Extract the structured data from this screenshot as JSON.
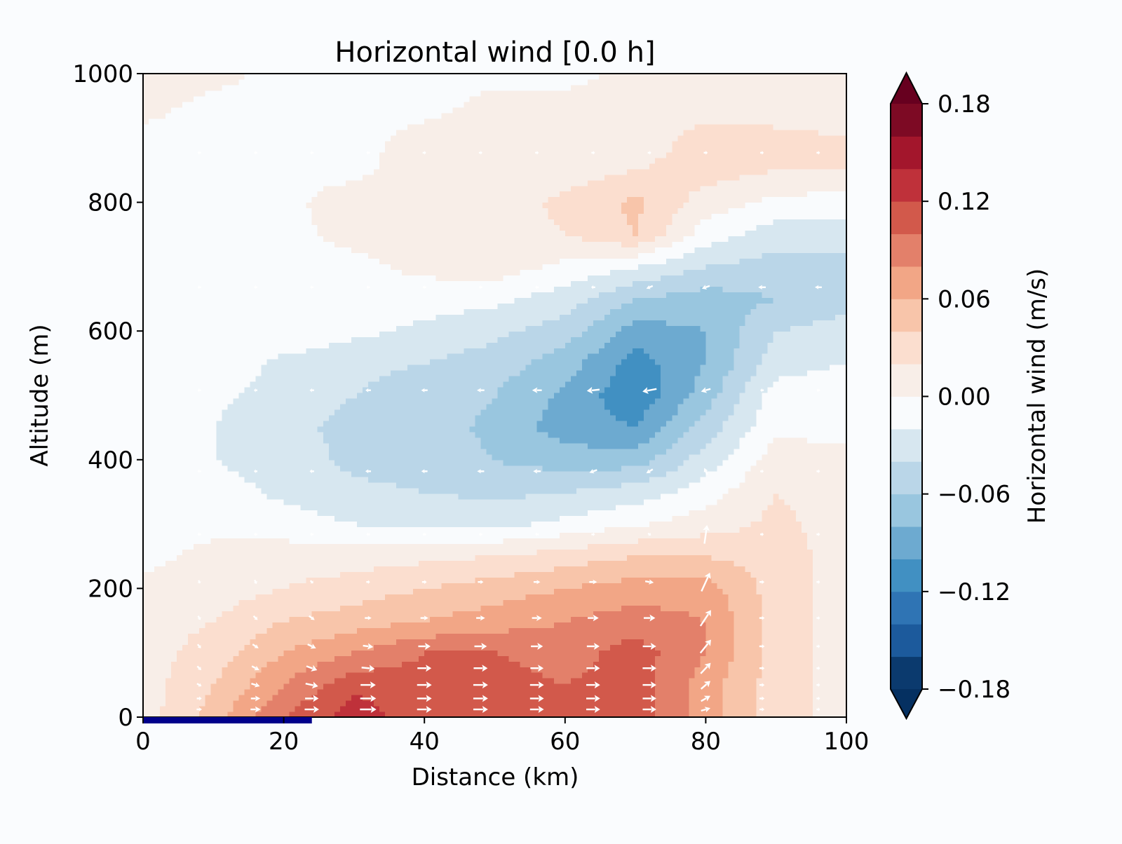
{
  "chart_data": {
    "type": "heatmap",
    "subtype": "filled-contour-with-quiver",
    "title": "Horizontal wind [0.0 h]",
    "xlabel": "Distance (km)",
    "ylabel": "Altitude (m)",
    "xlim": [
      0,
      100
    ],
    "ylim": [
      0,
      1000
    ],
    "xticks": [
      "0",
      "20",
      "40",
      "60",
      "80",
      "100"
    ],
    "yticks": [
      "0",
      "200",
      "400",
      "600",
      "800",
      "1000"
    ],
    "grid": false,
    "colorbar": {
      "label": "Horizontal wind (m/s)",
      "ticks": [
        "−0.18",
        "−0.12",
        "−0.06",
        "0.00",
        "0.06",
        "0.12",
        "0.18"
      ],
      "tick_values": [
        -0.18,
        -0.12,
        -0.06,
        0.0,
        0.06,
        0.12,
        0.18
      ],
      "levels_min": -0.18,
      "levels_step": 0.02,
      "extend": "both",
      "colors": [
        "#0b3a6e",
        "#1c5a9c",
        "#2f74b4",
        "#4190c2",
        "#6daad0",
        "#99c6df",
        "#bad6e8",
        "#d7e7f0",
        "#f9fbfd",
        "#f8eee8",
        "#fbdecf",
        "#f8c5aa",
        "#f2a686",
        "#e3806a",
        "#d2594b",
        "#bf313a",
        "#a3162c",
        "#7d0a24"
      ],
      "extend_low_color": "#053061",
      "extend_high_color": "#67001f"
    },
    "field": {
      "x": [
        0,
        10,
        20,
        30,
        40,
        50,
        60,
        70,
        80,
        90,
        100
      ],
      "z": [
        0,
        50,
        100,
        150,
        200,
        250,
        300,
        350,
        400,
        450,
        500,
        550,
        600,
        650,
        700,
        750,
        800,
        850,
        900,
        950,
        1000
      ],
      "u": [
        [
          0.01,
          0.05,
          0.1,
          0.13,
          0.11,
          0.11,
          0.1,
          0.11,
          0.07,
          0.03,
          0.01
        ],
        [
          0.01,
          0.04,
          0.08,
          0.115,
          0.11,
          0.11,
          0.1,
          0.11,
          0.07,
          0.03,
          0.01
        ],
        [
          0.01,
          0.03,
          0.06,
          0.08,
          0.1,
          0.1,
          0.09,
          0.11,
          0.08,
          0.03,
          0.01
        ],
        [
          0.01,
          0.02,
          0.04,
          0.05,
          0.06,
          0.07,
          0.08,
          0.09,
          0.08,
          0.03,
          0.01
        ],
        [
          0.005,
          0.01,
          0.02,
          0.03,
          0.04,
          0.05,
          0.06,
          0.07,
          0.07,
          0.03,
          0.01
        ],
        [
          -0.005,
          0.005,
          0.01,
          0.01,
          0.015,
          0.02,
          0.03,
          0.04,
          0.04,
          0.03,
          0.01
        ],
        [
          -0.005,
          -0.005,
          -0.01,
          -0.02,
          -0.025,
          -0.025,
          -0.015,
          -0.002,
          0.01,
          0.025,
          0.01
        ],
        [
          -0.005,
          -0.01,
          -0.025,
          -0.035,
          -0.04,
          -0.045,
          -0.04,
          -0.03,
          -0.01,
          0.02,
          0.01
        ],
        [
          -0.005,
          -0.02,
          -0.03,
          -0.045,
          -0.05,
          -0.06,
          -0.07,
          -0.07,
          -0.03,
          0.01,
          0.005
        ],
        [
          -0.005,
          -0.02,
          -0.035,
          -0.045,
          -0.05,
          -0.065,
          -0.09,
          -0.1,
          -0.05,
          -0.005,
          -0.005
        ],
        [
          -0.005,
          -0.015,
          -0.03,
          -0.04,
          -0.05,
          -0.06,
          -0.085,
          -0.115,
          -0.07,
          -0.01,
          -0.005
        ],
        [
          -0.005,
          -0.005,
          -0.025,
          -0.035,
          -0.04,
          -0.05,
          -0.07,
          -0.11,
          -0.08,
          -0.03,
          -0.02
        ],
        [
          -0.005,
          -0.005,
          -0.005,
          -0.015,
          -0.025,
          -0.035,
          -0.05,
          -0.09,
          -0.08,
          -0.04,
          -0.03
        ],
        [
          -0.005,
          -0.005,
          -0.005,
          -0.005,
          -0.01,
          -0.015,
          -0.03,
          -0.06,
          -0.07,
          -0.06,
          -0.05
        ],
        [
          -0.005,
          -0.005,
          -0.005,
          -0.005,
          0.005,
          0.01,
          -0.005,
          -0.02,
          -0.04,
          -0.05,
          -0.05
        ],
        [
          -0.005,
          -0.005,
          -0.005,
          0.005,
          0.01,
          0.01,
          0.02,
          0.04,
          -0.01,
          -0.03,
          -0.03
        ],
        [
          -0.005,
          -0.005,
          -0.005,
          0.01,
          0.01,
          0.01,
          0.025,
          0.045,
          0.01,
          -0.005,
          -0.01
        ],
        [
          -0.005,
          -0.005,
          -0.005,
          -0.005,
          0.01,
          0.01,
          0.01,
          0.02,
          0.03,
          0.02,
          0.02
        ],
        [
          -0.005,
          -0.005,
          -0.005,
          -0.005,
          0.005,
          0.01,
          0.01,
          0.005,
          0.03,
          0.025,
          0.02
        ],
        [
          0.005,
          -0.005,
          -0.005,
          -0.005,
          -0.005,
          0.005,
          0.005,
          0.005,
          0.01,
          0.01,
          0.01
        ],
        [
          0.01,
          0.005,
          -0.005,
          -0.005,
          -0.005,
          -0.005,
          -0.005,
          0.005,
          0.01,
          0.01,
          0.01
        ]
      ]
    },
    "quiver": {
      "x": [
        8,
        16,
        24,
        32,
        40,
        48,
        56,
        64,
        72,
        80,
        88,
        96
      ],
      "z": [
        12,
        29,
        50,
        76,
        110,
        154,
        210,
        284,
        382,
        508,
        668,
        877
      ],
      "w_by_column": {
        "8": [
          0,
          0,
          -0.02,
          -0.03,
          -0.03,
          -0.03,
          -0.02,
          0,
          0,
          0,
          0,
          0
        ],
        "16": [
          0,
          0,
          -0.02,
          -0.03,
          -0.03,
          -0.03,
          -0.03,
          0,
          0,
          0,
          0,
          0
        ],
        "24": [
          0,
          0,
          -0.02,
          -0.03,
          -0.03,
          -0.03,
          -0.02,
          0,
          0,
          0,
          0,
          0
        ],
        "32": [
          0,
          0,
          0,
          -0.01,
          -0.01,
          0,
          0,
          0,
          0,
          0,
          0,
          0
        ],
        "72": [
          0,
          0,
          0,
          0,
          0,
          0,
          -0.01,
          -0.01,
          -0.03,
          -0.02,
          -0.02,
          0
        ],
        "64": [
          0,
          0,
          0,
          0,
          0,
          0,
          0,
          0,
          -0.02,
          -0.01,
          0,
          0
        ],
        "80": [
          0.02,
          0.04,
          0.06,
          0.08,
          0.1,
          0.12,
          0.14,
          0.14,
          0.05,
          -0.02,
          -0.02,
          0
        ]
      }
    },
    "land_segment_km": [
      0,
      24
    ],
    "land_color": "#00008b"
  }
}
